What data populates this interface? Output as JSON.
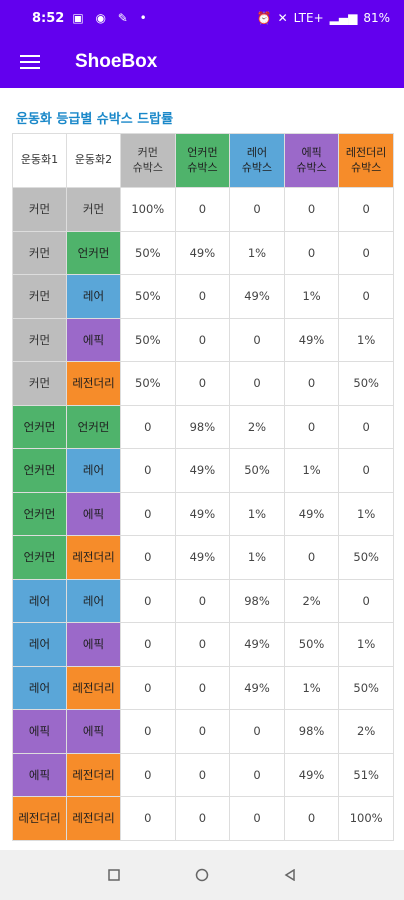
{
  "status_bar": {
    "time": "8:52",
    "battery": "81%",
    "network": "LTE+"
  },
  "app_bar": {
    "title": "ShoeBox"
  },
  "section_title": "운동화 등급별 슈박스 드랍률",
  "table": {
    "headers": [
      "운동화1",
      "운동화2",
      "커먼\n슈박스",
      "언커먼\n슈박스",
      "레어\n슈박스",
      "에픽\n슈박스",
      "레전더리\n슈박스"
    ],
    "header_classes": [
      "",
      "",
      "g-common",
      "g-uncommon",
      "g-rare",
      "g-epic",
      "g-legend"
    ],
    "rows": [
      {
        "s1": "커먼",
        "c1": "g-common",
        "s2": "커먼",
        "c2": "g-common",
        "v": [
          "100%",
          "0",
          "0",
          "0",
          "0"
        ]
      },
      {
        "s1": "커먼",
        "c1": "g-common",
        "s2": "언커먼",
        "c2": "g-uncommon",
        "v": [
          "50%",
          "49%",
          "1%",
          "0",
          "0"
        ]
      },
      {
        "s1": "커먼",
        "c1": "g-common",
        "s2": "레어",
        "c2": "g-rare",
        "v": [
          "50%",
          "0",
          "49%",
          "1%",
          "0"
        ]
      },
      {
        "s1": "커먼",
        "c1": "g-common",
        "s2": "에픽",
        "c2": "g-epic",
        "v": [
          "50%",
          "0",
          "0",
          "49%",
          "1%"
        ]
      },
      {
        "s1": "커먼",
        "c1": "g-common",
        "s2": "레전더리",
        "c2": "g-legend",
        "v": [
          "50%",
          "0",
          "0",
          "0",
          "50%"
        ]
      },
      {
        "s1": "언커먼",
        "c1": "g-uncommon",
        "s2": "언커먼",
        "c2": "g-uncommon",
        "v": [
          "0",
          "98%",
          "2%",
          "0",
          "0"
        ]
      },
      {
        "s1": "언커먼",
        "c1": "g-uncommon",
        "s2": "레어",
        "c2": "g-rare",
        "v": [
          "0",
          "49%",
          "50%",
          "1%",
          "0"
        ]
      },
      {
        "s1": "언커먼",
        "c1": "g-uncommon",
        "s2": "에픽",
        "c2": "g-epic",
        "v": [
          "0",
          "49%",
          "1%",
          "49%",
          "1%"
        ]
      },
      {
        "s1": "언커먼",
        "c1": "g-uncommon",
        "s2": "레전더리",
        "c2": "g-legend",
        "v": [
          "0",
          "49%",
          "1%",
          "0",
          "50%"
        ]
      },
      {
        "s1": "레어",
        "c1": "g-rare",
        "s2": "레어",
        "c2": "g-rare",
        "v": [
          "0",
          "0",
          "98%",
          "2%",
          "0"
        ]
      },
      {
        "s1": "레어",
        "c1": "g-rare",
        "s2": "에픽",
        "c2": "g-epic",
        "v": [
          "0",
          "0",
          "49%",
          "50%",
          "1%"
        ]
      },
      {
        "s1": "레어",
        "c1": "g-rare",
        "s2": "레전더리",
        "c2": "g-legend",
        "v": [
          "0",
          "0",
          "49%",
          "1%",
          "50%"
        ]
      },
      {
        "s1": "에픽",
        "c1": "g-epic",
        "s2": "에픽",
        "c2": "g-epic",
        "v": [
          "0",
          "0",
          "0",
          "98%",
          "2%"
        ]
      },
      {
        "s1": "에픽",
        "c1": "g-epic",
        "s2": "레전더리",
        "c2": "g-legend",
        "v": [
          "0",
          "0",
          "0",
          "49%",
          "51%"
        ]
      },
      {
        "s1": "레전더리",
        "c1": "g-legend",
        "s2": "레전더리",
        "c2": "g-legend",
        "v": [
          "0",
          "0",
          "0",
          "0",
          "100%"
        ]
      }
    ]
  },
  "colors": {
    "app_bar": "#6200ee",
    "section_title": "#1a88c9",
    "common": "#bdbdbd",
    "uncommon": "#4fb36b",
    "rare": "#5aa6d8",
    "epic": "#9b69c9",
    "legendary": "#f68c2a"
  },
  "nav_bar": {
    "recents_icon": "square-icon",
    "home_icon": "circle-icon",
    "back_icon": "triangle-back-icon"
  }
}
